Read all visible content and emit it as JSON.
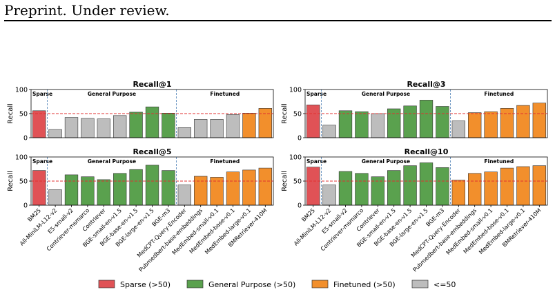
{
  "header": {
    "text": "Preprint. Under review."
  },
  "colors": {
    "sparse": "#e05256",
    "general": "#5aa14e",
    "finetuned": "#f28f2c",
    "low": "#bdbdbd",
    "bar_edge": "#333333",
    "threshold": "#e03030",
    "divider": "#4a7fb5"
  },
  "legend": [
    {
      "label": "Sparse (>50)",
      "color_key": "sparse"
    },
    {
      "label": "General Purpose (>50)",
      "color_key": "general"
    },
    {
      "label": "Finetuned (>50)",
      "color_key": "finetuned"
    },
    {
      "label": "<=50",
      "color_key": "low"
    }
  ],
  "chart_data": [
    {
      "type": "bar",
      "title": "Recall@1",
      "ylabel": "Recall",
      "ylim": [
        0,
        100
      ],
      "yticks": [
        0,
        50,
        100
      ],
      "threshold": 50,
      "categories": [
        "BM25",
        "All-MiniLM-L12-v2",
        "E5-small-v2",
        "Contriever-msmarco",
        "Contriever",
        "BGE-small-en-v1.5",
        "BGE-base-en-v1.5",
        "BGE-large-en-v1.5",
        "BGE-m3",
        "MedCPT-Query-Encoder",
        "Pubmedbert-base-embeddings",
        "MedEmbed-small-v0.1",
        "MedEmbed-base-v0.1",
        "MedEmbed-large-v0.1",
        "BMRetriever-410M"
      ],
      "groups": [
        "sparse",
        "general",
        "general",
        "general",
        "general",
        "general",
        "general",
        "general",
        "general",
        "finetuned",
        "finetuned",
        "finetuned",
        "finetuned",
        "finetuned",
        "finetuned"
      ],
      "group_labels": {
        "sparse": "Sparse",
        "general": "General Purpose",
        "finetuned": "Finetuned"
      },
      "values": [
        56,
        17,
        42,
        40,
        39,
        46,
        53,
        64,
        51,
        21,
        38,
        38,
        48,
        51,
        61
      ]
    },
    {
      "type": "bar",
      "title": "Recall@3",
      "ylabel": "Recall",
      "ylim": [
        0,
        100
      ],
      "yticks": [
        0,
        50,
        100
      ],
      "threshold": 50,
      "categories": [
        "BM25",
        "All-MiniLM-L12-v2",
        "E5-small-v2",
        "Contriever-msmarco",
        "Contriever",
        "BGE-small-en-v1.5",
        "BGE-base-en-v1.5",
        "BGE-large-en-v1.5",
        "BGE-m3",
        "MedCPT-Query-Encoder",
        "Pubmedbert-base-embeddings",
        "MedEmbed-small-v0.1",
        "MedEmbed-base-v0.1",
        "MedEmbed-large-v0.1",
        "BMRetriever-410M"
      ],
      "groups": [
        "sparse",
        "general",
        "general",
        "general",
        "general",
        "general",
        "general",
        "general",
        "general",
        "finetuned",
        "finetuned",
        "finetuned",
        "finetuned",
        "finetuned",
        "finetuned"
      ],
      "group_labels": {
        "sparse": "Sparse",
        "general": "General Purpose",
        "finetuned": "Finetuned"
      },
      "values": [
        68,
        26,
        56,
        54,
        50,
        60,
        66,
        78,
        65,
        35,
        52,
        54,
        61,
        67,
        72
      ]
    },
    {
      "type": "bar",
      "title": "Recall@5",
      "ylabel": "Recall",
      "ylim": [
        0,
        100
      ],
      "yticks": [
        0,
        50,
        100
      ],
      "threshold": 50,
      "categories": [
        "BM25",
        "All-MiniLM-L12-v2",
        "E5-small-v2",
        "Contriever-msmarco",
        "Contriever",
        "BGE-small-en-v1.5",
        "BGE-base-en-v1.5",
        "BGE-large-en-v1.5",
        "BGE-m3",
        "MedCPT-Query-Encoder",
        "Pubmedbert-base-embeddings",
        "MedEmbed-small-v0.1",
        "MedEmbed-base-v0.1",
        "MedEmbed-large-v0.1",
        "BMRetriever-410M"
      ],
      "groups": [
        "sparse",
        "general",
        "general",
        "general",
        "general",
        "general",
        "general",
        "general",
        "general",
        "finetuned",
        "finetuned",
        "finetuned",
        "finetuned",
        "finetuned",
        "finetuned"
      ],
      "group_labels": {
        "sparse": "Sparse",
        "general": "General Purpose",
        "finetuned": "Finetuned"
      },
      "values": [
        72,
        32,
        63,
        59,
        53,
        66,
        74,
        83,
        72,
        42,
        60,
        58,
        69,
        73,
        77
      ]
    },
    {
      "type": "bar",
      "title": "Recall@10",
      "ylabel": "Recall",
      "ylim": [
        0,
        100
      ],
      "yticks": [
        0,
        50,
        100
      ],
      "threshold": 50,
      "categories": [
        "BM25",
        "All-MiniLM-L12-v2",
        "E5-small-v2",
        "Contriever-msmarco",
        "Contriever",
        "BGE-small-en-v1.5",
        "BGE-base-en-v1.5",
        "BGE-large-en-v1.5",
        "BGE-m3",
        "MedCPT-Query-Encoder",
        "Pubmedbert-base-embeddings",
        "MedEmbed-small-v0.1",
        "MedEmbed-base-v0.1",
        "MedEmbed-large-v0.1",
        "BMRetriever-410M"
      ],
      "groups": [
        "sparse",
        "general",
        "general",
        "general",
        "general",
        "general",
        "general",
        "general",
        "general",
        "finetuned",
        "finetuned",
        "finetuned",
        "finetuned",
        "finetuned",
        "finetuned"
      ],
      "group_labels": {
        "sparse": "Sparse",
        "general": "General Purpose",
        "finetuned": "Finetuned"
      },
      "values": [
        79,
        42,
        70,
        66,
        59,
        72,
        82,
        88,
        78,
        52,
        66,
        69,
        77,
        80,
        82
      ]
    }
  ]
}
